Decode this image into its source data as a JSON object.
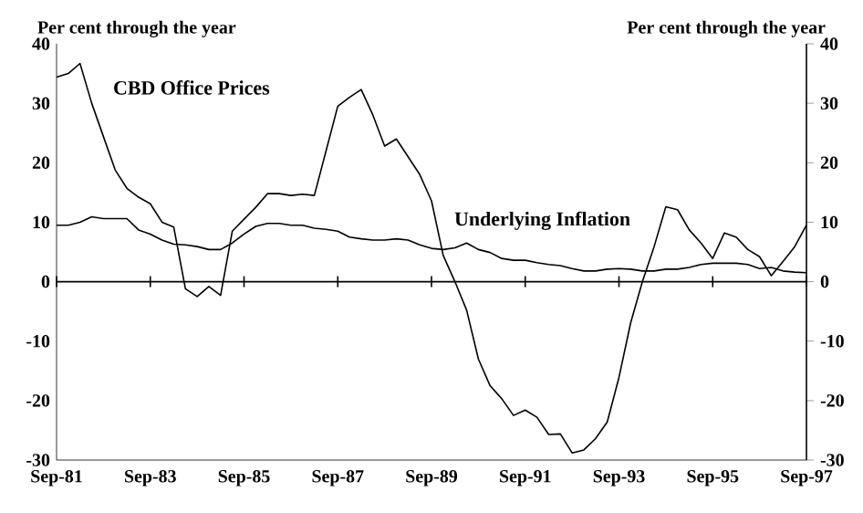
{
  "chart_data": {
    "type": "line",
    "ylabel": "Per cent through the year",
    "y2label": "Per cent through the year",
    "x": [
      "1981-09",
      "1981-12",
      "1982-03",
      "1982-06",
      "1982-09",
      "1982-12",
      "1983-03",
      "1983-06",
      "1983-09",
      "1983-12",
      "1984-03",
      "1984-06",
      "1984-09",
      "1984-12",
      "1985-03",
      "1985-06",
      "1985-09",
      "1985-12",
      "1986-03",
      "1986-06",
      "1986-09",
      "1986-12",
      "1987-03",
      "1987-06",
      "1987-09",
      "1987-12",
      "1988-03",
      "1988-06",
      "1988-09",
      "1988-12",
      "1989-03",
      "1989-06",
      "1989-09",
      "1989-12",
      "1990-03",
      "1990-06",
      "1990-09",
      "1990-12",
      "1991-03",
      "1991-06",
      "1991-09",
      "1991-12",
      "1992-03",
      "1992-06",
      "1992-09",
      "1992-12",
      "1993-03",
      "1993-06",
      "1993-09",
      "1993-12",
      "1994-03",
      "1994-06",
      "1994-09",
      "1994-12",
      "1995-03",
      "1995-06",
      "1995-09",
      "1995-12",
      "1996-03",
      "1996-06",
      "1996-09",
      "1996-12",
      "1997-03",
      "1997-06",
      "1997-09"
    ],
    "series": [
      {
        "name": "CBD Office Prices",
        "color": "#000000",
        "values": [
          34.4,
          35,
          36.7,
          30,
          24.4,
          18.8,
          15.7,
          14.2,
          13.1,
          10,
          9.2,
          -1.2,
          -2.5,
          -0.8,
          -2.3,
          8.5,
          10.5,
          12.5,
          14.8,
          14.8,
          14.5,
          14.7,
          14.5,
          22,
          29.5,
          31,
          32.3,
          28,
          22.8,
          24,
          21,
          18,
          13.6,
          4.4,
          0,
          -4.8,
          -13,
          -17.5,
          -19.7,
          -22.5,
          -21.6,
          -22.8,
          -25.7,
          -25.6,
          -28.8,
          -28.3,
          -26.4,
          -23.6,
          -16.1,
          -6.9,
          0,
          5.9,
          12.6,
          12.1,
          8.7,
          6.5,
          3.9,
          8.2,
          7.5,
          5.4,
          4.2,
          1,
          3.4,
          5.9,
          9.5
        ]
      },
      {
        "name": "Underlying Inflation",
        "color": "#000000",
        "values": [
          9.5,
          9.5,
          10,
          10.9,
          10.6,
          10.6,
          10.6,
          8.7,
          8,
          7,
          6.3,
          6.2,
          5.9,
          5.4,
          5.4,
          6.5,
          8,
          9.3,
          9.8,
          9.8,
          9.5,
          9.5,
          9,
          8.8,
          8.5,
          7.5,
          7.2,
          7,
          7,
          7.2,
          7,
          6.2,
          5.6,
          5.4,
          5.7,
          6.5,
          5.4,
          4.9,
          3.9,
          3.6,
          3.6,
          3.2,
          2.9,
          2.7,
          2.2,
          1.8,
          1.8,
          2.1,
          2.2,
          2.1,
          1.8,
          1.8,
          2.1,
          2.1,
          2.4,
          2.9,
          3.1,
          3.1,
          3.1,
          2.9,
          2.2,
          2.4,
          1.8,
          1.6,
          1.5
        ]
      }
    ],
    "xlim": [
      "1981-09",
      "1997-09"
    ],
    "xticks": [
      {
        "value": "1981-09",
        "label": "Sep-81"
      },
      {
        "value": "1983-09",
        "label": "Sep-83"
      },
      {
        "value": "1985-09",
        "label": "Sep-85"
      },
      {
        "value": "1987-09",
        "label": "Sep-87"
      },
      {
        "value": "1989-09",
        "label": "Sep-89"
      },
      {
        "value": "1991-09",
        "label": "Sep-91"
      },
      {
        "value": "1993-09",
        "label": "Sep-93"
      },
      {
        "value": "1995-09",
        "label": "Sep-95"
      },
      {
        "value": "1997-09",
        "label": "Sep-97"
      }
    ],
    "ylim": [
      -30,
      40
    ],
    "yticks": [
      -30,
      -20,
      -10,
      0,
      10,
      20,
      30,
      40
    ],
    "y2lim": [
      -30,
      40
    ],
    "y2ticks": [
      -30,
      -20,
      -10,
      0,
      10,
      20,
      30,
      40
    ],
    "ref_lines": [
      {
        "axis": "y",
        "value": 0,
        "color": "#000000",
        "line_style": "solid"
      }
    ],
    "grid": false,
    "marker": "none",
    "line_style": "solid"
  }
}
